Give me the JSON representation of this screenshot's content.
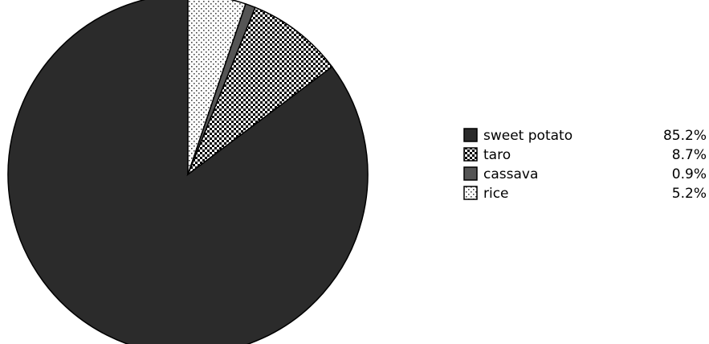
{
  "chart_data": {
    "type": "pie",
    "start": "top",
    "direction": "counterclockwise",
    "legend_position": "right",
    "slices": [
      {
        "label": "sweet potato",
        "value": 85.2,
        "value_label": "85.2%",
        "fill": "#2b2b2b",
        "pattern": "solid"
      },
      {
        "label": "taro",
        "value": 8.7,
        "value_label": "8.7%",
        "fill": "#000000",
        "pattern": "checker"
      },
      {
        "label": "cassava",
        "value": 0.9,
        "value_label": "0.9%",
        "fill": "#555555",
        "pattern": "solid"
      },
      {
        "label": "rice",
        "value": 5.2,
        "value_label": "5.2%",
        "fill": "#ffffff",
        "pattern": "dots"
      }
    ]
  }
}
